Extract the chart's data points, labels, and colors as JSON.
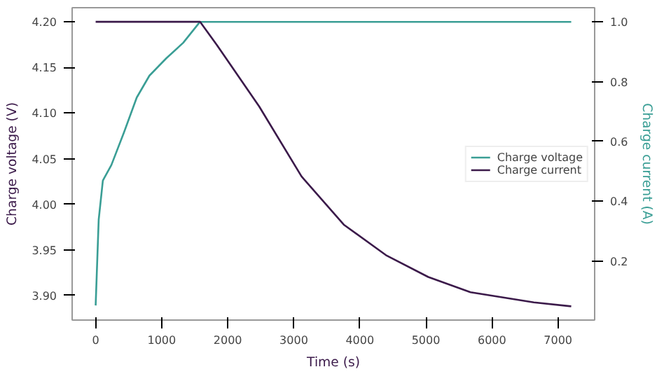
{
  "chart_data": {
    "type": "line",
    "xlabel": "Time (s)",
    "ylabel": "Charge voltage (V)",
    "y2label": "Charge current (A)",
    "xlim": [
      -356,
      7555
    ],
    "xticks": [
      0,
      1000,
      2000,
      3000,
      4000,
      5000,
      6000,
      7000
    ],
    "ylim": [
      3.873,
      4.2155
    ],
    "yticks": [
      {
        "value": 3.9,
        "label": "3.90"
      },
      3.95,
      {
        "value": 4.0,
        "label": "4.00"
      },
      4.05,
      {
        "value": 4.1,
        "label": "4.10"
      },
      4.15,
      {
        "value": 4.2,
        "label": "4.20"
      }
    ],
    "y2lim": [
      0.003,
      1.047
    ],
    "y2ticks": [
      0.2,
      0.4,
      0.6,
      0.8,
      {
        "value": 1.0,
        "label": "1.0"
      }
    ],
    "grid": false,
    "legend": "right",
    "series": [
      {
        "name": "Charge voltage",
        "color": "#3a9e95",
        "x": [
          0,
          46,
          109,
          238,
          430,
          622,
          814,
          1069,
          1325,
          1580,
          7200
        ],
        "values": [
          3.889,
          3.983,
          4.026,
          4.043,
          4.079,
          4.117,
          4.141,
          4.16,
          4.177,
          4.2,
          4.2
        ]
      },
      {
        "name": "Charge current",
        "color": "#3b1a4a",
        "axis": "y2",
        "x": [
          0,
          1580,
          1837,
          2476,
          3117,
          3756,
          4395,
          5036,
          5675,
          6635,
          7200
        ],
        "values": [
          1.0,
          1.0,
          0.922,
          0.717,
          0.483,
          0.322,
          0.22,
          0.147,
          0.096,
          0.062,
          0.049
        ]
      }
    ]
  }
}
